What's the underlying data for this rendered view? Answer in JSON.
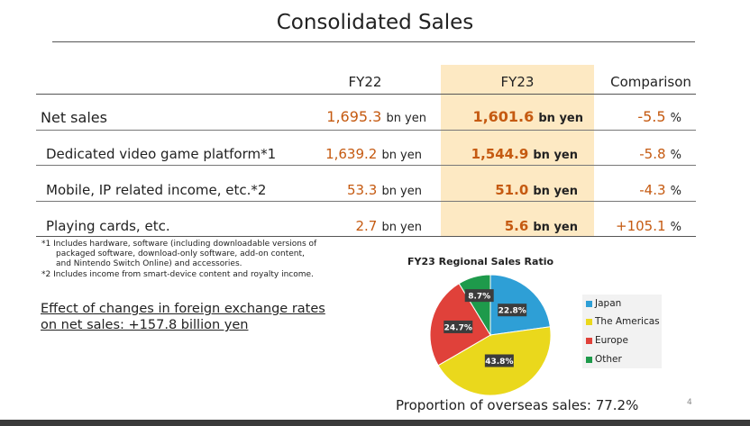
{
  "title": "Consolidated Sales",
  "table": {
    "headers": [
      "FY22",
      "FY23",
      "Comparison"
    ],
    "rows": [
      {
        "label": "Net sales",
        "fy22": "1,695.3",
        "fy22_unit": "bn yen",
        "fy23": "1,601.6",
        "fy23_unit": "bn yen",
        "cmp": "-5.5",
        "cmp_unit": "%"
      },
      {
        "label": "Dedicated video game platform*1",
        "fy22": "1,639.2",
        "fy22_unit": "bn yen",
        "fy23": "1,544.9",
        "fy23_unit": "bn yen",
        "cmp": "-5.8",
        "cmp_unit": "%"
      },
      {
        "label": "Mobile, IP related income, etc.*2",
        "fy22": "53.3",
        "fy22_unit": "bn yen",
        "fy23": "51.0",
        "fy23_unit": "bn yen",
        "cmp": "-4.3",
        "cmp_unit": "%"
      },
      {
        "label": "Playing cards, etc.",
        "fy22": "2.7",
        "fy22_unit": "bn yen",
        "fy23": "5.6",
        "fy23_unit": "bn yen",
        "cmp": "+105.1",
        "cmp_unit": "%"
      }
    ]
  },
  "footnotes": {
    "line1": "*1 Includes hardware, software (including downloadable versions of",
    "line2": "packaged software, download-only software, add-on content,",
    "line3": "and Nintendo Switch Online) and accessories.",
    "line4": "*2 Includes income from smart-device content and royalty income."
  },
  "fx_effect": {
    "line1": "Effect of changes in foreign exchange rates",
    "line2": "on net sales: +157.8 billion yen"
  },
  "chart_data": {
    "type": "pie",
    "title": "FY23 Regional Sales Ratio",
    "categories": [
      "Japan",
      "The Americas",
      "Europe",
      "Other"
    ],
    "values": [
      22.8,
      43.8,
      24.7,
      8.7
    ],
    "labels": [
      "22.8%",
      "43.8%",
      "24.7%",
      "8.7%"
    ],
    "colors": [
      "#2e9fd6",
      "#ead81c",
      "#e0413a",
      "#1e9a4b"
    ],
    "legend_position": "right"
  },
  "overseas": "Proportion of overseas sales: 77.2%",
  "page_number": "4"
}
